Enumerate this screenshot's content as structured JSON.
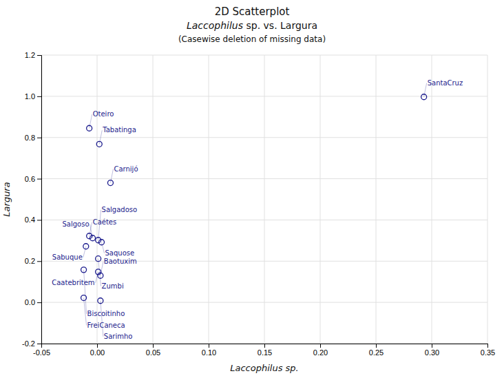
{
  "chart_data": {
    "type": "scatter",
    "title": [
      "2D Scatterplot",
      "Laccophilus sp. vs. Largura",
      "(Casewise deletion of missing data)"
    ],
    "xlabel": "Laccophilus sp.",
    "ylabel": "Largura",
    "x": [
      0.293,
      -0.007,
      0.002,
      0.012,
      -0.007,
      -0.004,
      0.001,
      0.004,
      -0.01,
      0.001,
      -0.012,
      0.001,
      0.003,
      -0.012,
      0.003
    ],
    "values": [
      0.997,
      0.845,
      0.768,
      0.58,
      0.322,
      0.312,
      0.302,
      0.292,
      0.272,
      0.212,
      0.158,
      0.148,
      0.13,
      0.022,
      0.008
    ],
    "labels": [
      "SantaCruz",
      "Oteiro",
      "Tabatinga",
      "Carnijó",
      "Caétes",
      "Salgoso",
      "Salgadoso",
      "Saquose",
      "Sabuque",
      "Zumbi",
      "Biscoitinho",
      "Caatebritem",
      "Baotuxim",
      "FreiCaneca",
      "Sarimho"
    ],
    "color": "#1A1A8C",
    "marker": "circle",
    "xlim": [
      -0.05,
      0.35
    ],
    "ylim": [
      -0.2,
      1.2
    ],
    "xticks": [
      -0.05,
      {
        "value": 0.0,
        "label": "0.00"
      },
      0.05,
      {
        "value": 0.1,
        "label": "0.10"
      },
      0.15,
      {
        "value": 0.2,
        "label": "0.20"
      },
      0.25,
      {
        "value": 0.3,
        "label": "0.30"
      },
      0.35
    ],
    "yticks": [
      -0.2,
      {
        "value": 0.0,
        "label": "0.0"
      },
      0.2,
      0.4,
      0.6,
      0.8,
      {
        "value": 1.0,
        "label": "1.0"
      },
      1.2
    ],
    "grid": true
  }
}
